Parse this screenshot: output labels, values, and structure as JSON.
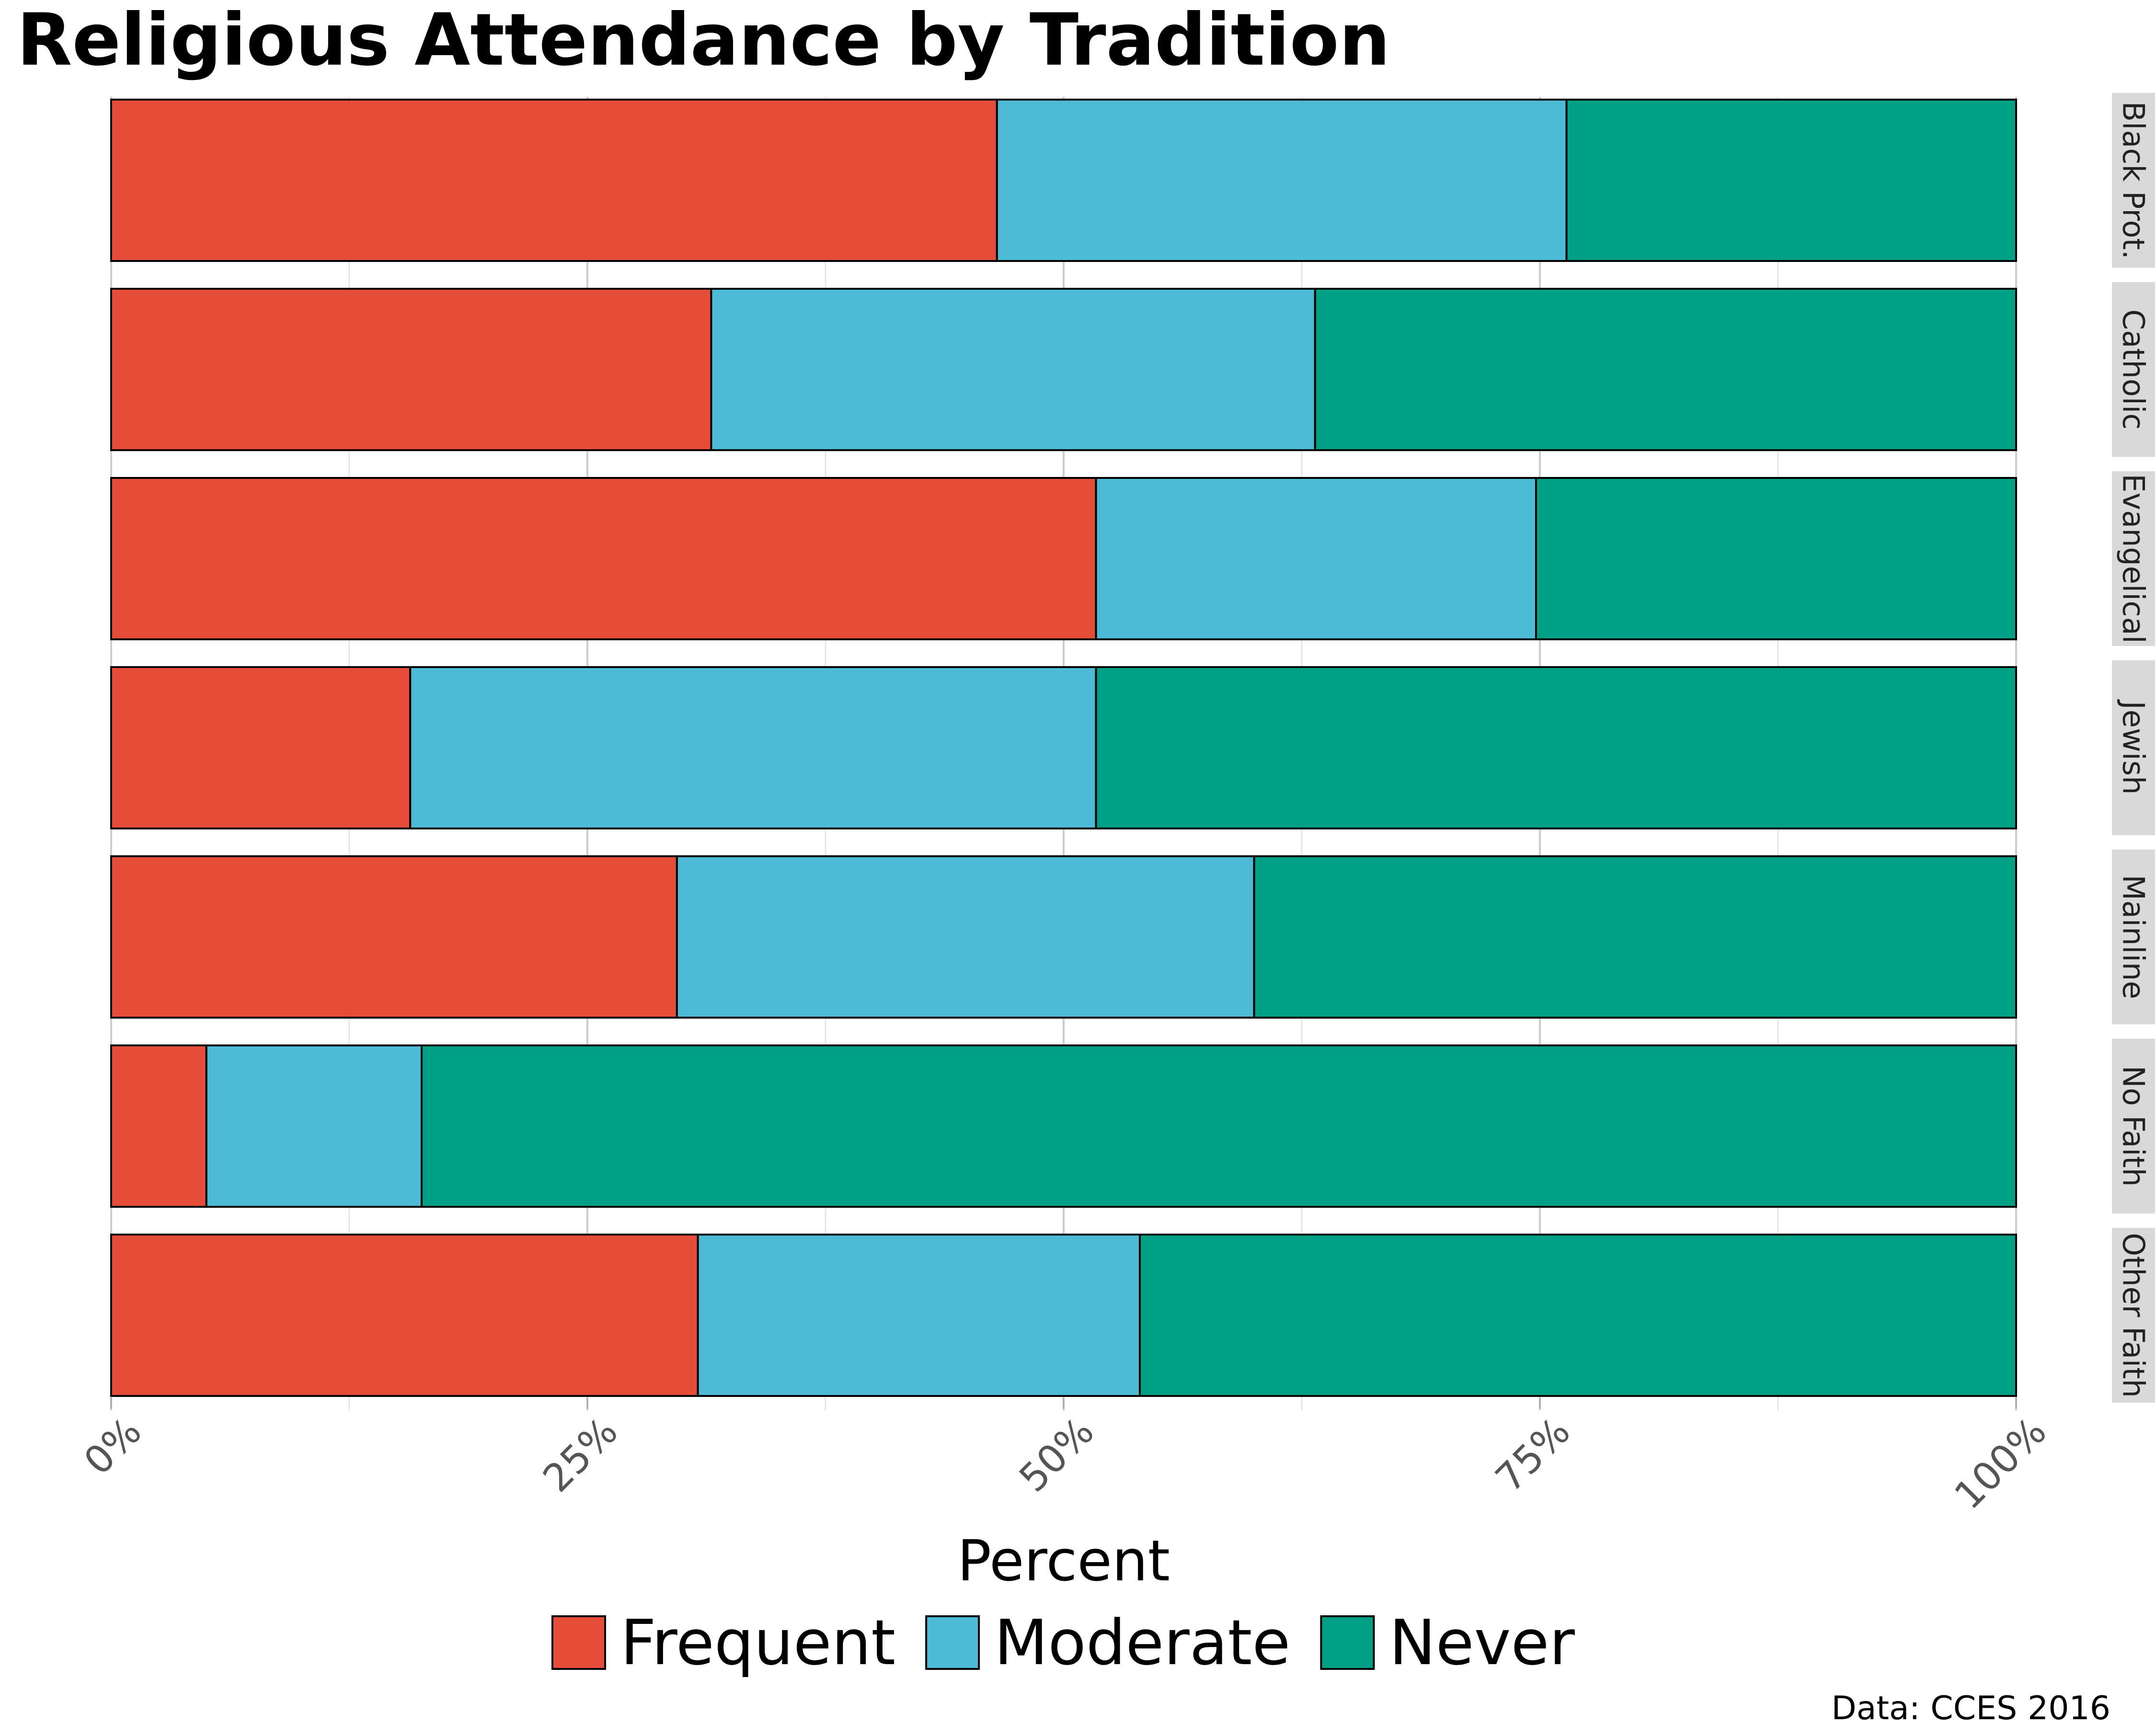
{
  "chart_data": {
    "type": "bar",
    "orientation": "horizontal",
    "stacked": true,
    "title": "Religious Attendance by Tradition",
    "xlabel": "Percent",
    "ylabel": "",
    "caption": "Data: CCES 2016",
    "xlim": [
      0,
      1
    ],
    "x_ticks": [
      0,
      0.25,
      0.5,
      0.75,
      1.0
    ],
    "x_tick_labels": [
      "0%",
      "25%",
      "50%",
      "75%",
      "100%"
    ],
    "grid": true,
    "legend_position": "bottom",
    "categories": [
      "Black Prot.",
      "Catholic",
      "Evangelical",
      "Jewish",
      "Mainline",
      "No Faith",
      "Other Faith"
    ],
    "series": [
      {
        "name": "Frequent",
        "color": "#E64D38",
        "values": [
          0.465,
          0.315,
          0.517,
          0.157,
          0.297,
          0.05,
          0.308
        ]
      },
      {
        "name": "Moderate",
        "color": "#4DBAD6",
        "values": [
          0.299,
          0.317,
          0.231,
          0.36,
          0.303,
          0.113,
          0.232
        ]
      },
      {
        "name": "Never",
        "color": "#00A087",
        "values": [
          0.236,
          0.368,
          0.252,
          0.483,
          0.4,
          0.837,
          0.46
        ]
      }
    ]
  }
}
